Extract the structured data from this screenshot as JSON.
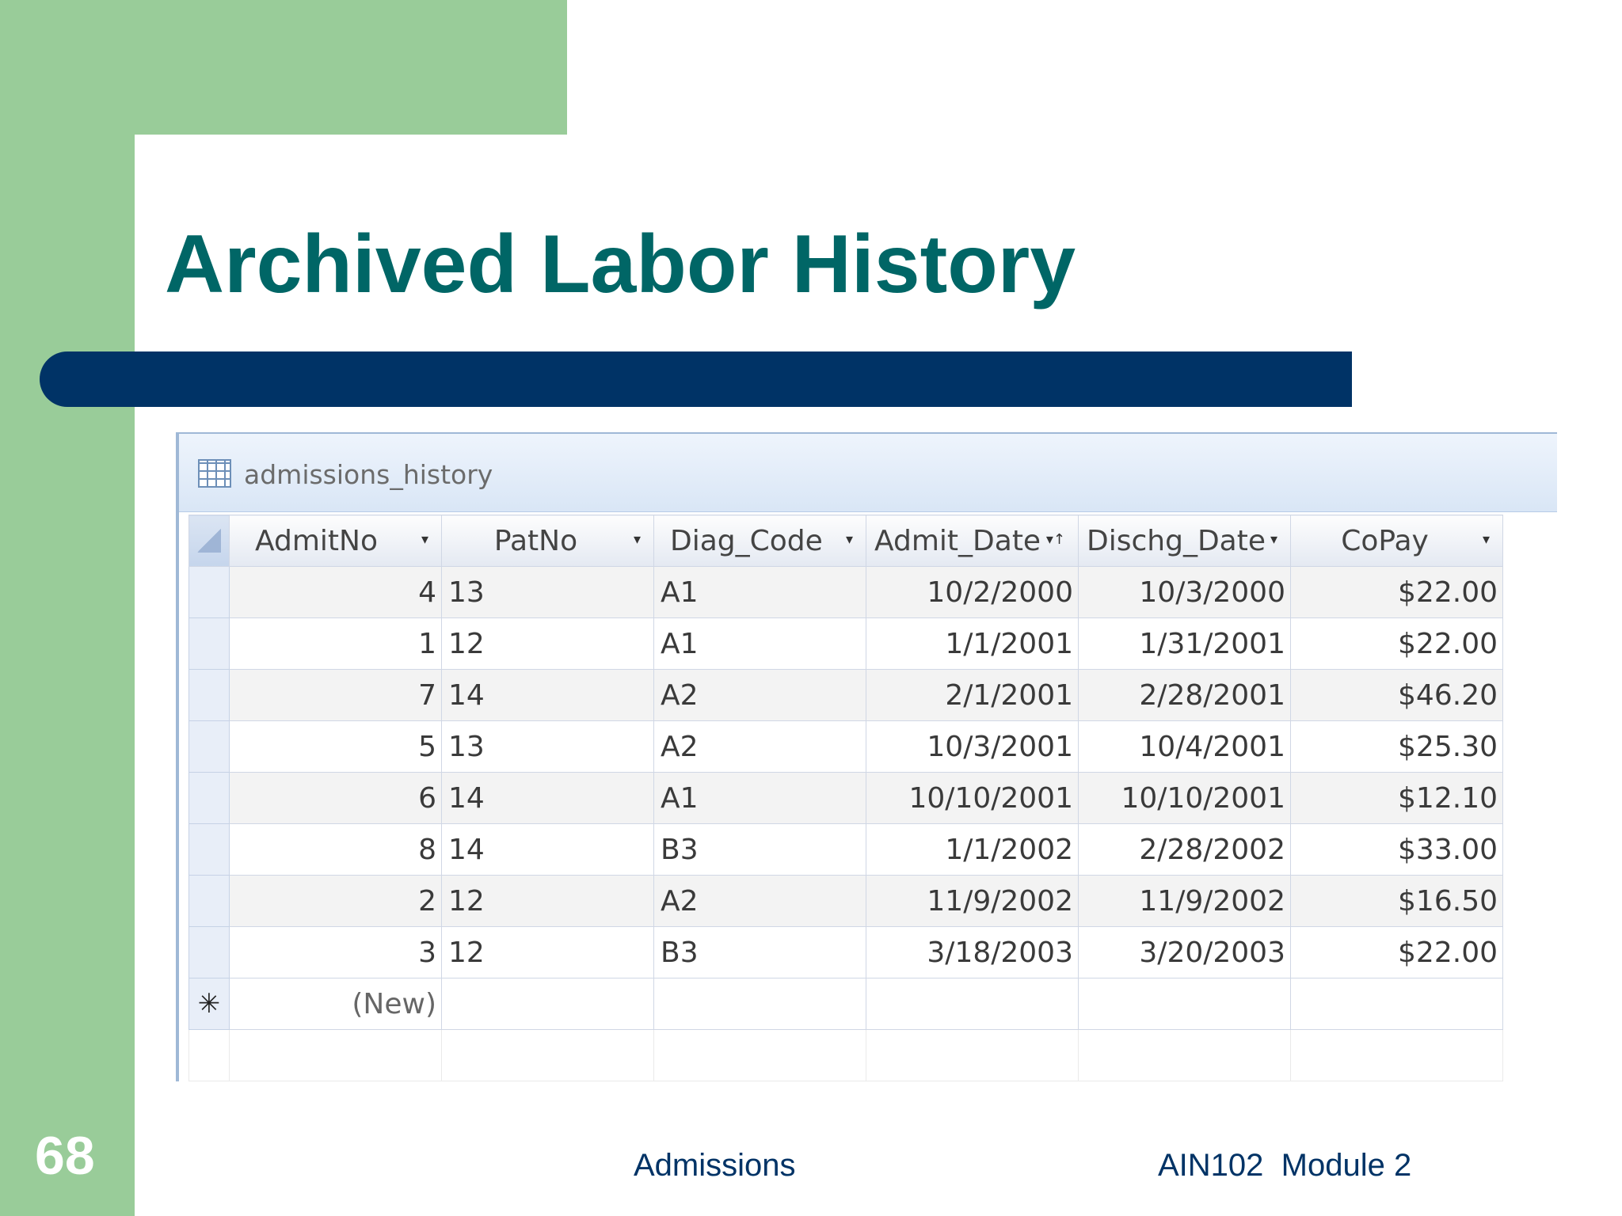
{
  "slide": {
    "title": "Archived Labor History",
    "number": "68",
    "footer_center": "Admissions",
    "footer_right": "AIN102  Module 2"
  },
  "datasheet": {
    "tab_label": "admissions_history",
    "columns": [
      {
        "label": "AdmitNo",
        "arrow": "▾"
      },
      {
        "label": "PatNo",
        "arrow": "▾"
      },
      {
        "label": "Diag_Code",
        "arrow": "▾"
      },
      {
        "label": "Admit_Date",
        "arrow": "▾↑"
      },
      {
        "label": "Dischg_Date",
        "arrow": "▾"
      },
      {
        "label": "CoPay",
        "arrow": "▾"
      }
    ],
    "rows": [
      [
        "4",
        "13",
        "A1",
        "10/2/2000",
        "10/3/2000",
        "$22.00"
      ],
      [
        "1",
        "12",
        "A1",
        "1/1/2001",
        "1/31/2001",
        "$22.00"
      ],
      [
        "7",
        "14",
        "A2",
        "2/1/2001",
        "2/28/2001",
        "$46.20"
      ],
      [
        "5",
        "13",
        "A2",
        "10/3/2001",
        "10/4/2001",
        "$25.30"
      ],
      [
        "6",
        "14",
        "A1",
        "10/10/2001",
        "10/10/2001",
        "$12.10"
      ],
      [
        "8",
        "14",
        "B3",
        "1/1/2002",
        "2/28/2002",
        "$33.00"
      ],
      [
        "2",
        "12",
        "A2",
        "11/9/2002",
        "11/9/2002",
        "$16.50"
      ],
      [
        "3",
        "12",
        "B3",
        "3/18/2003",
        "3/20/2003",
        "$22.00"
      ]
    ],
    "new_row_marker": "✳",
    "new_row_label": "(New)"
  }
}
